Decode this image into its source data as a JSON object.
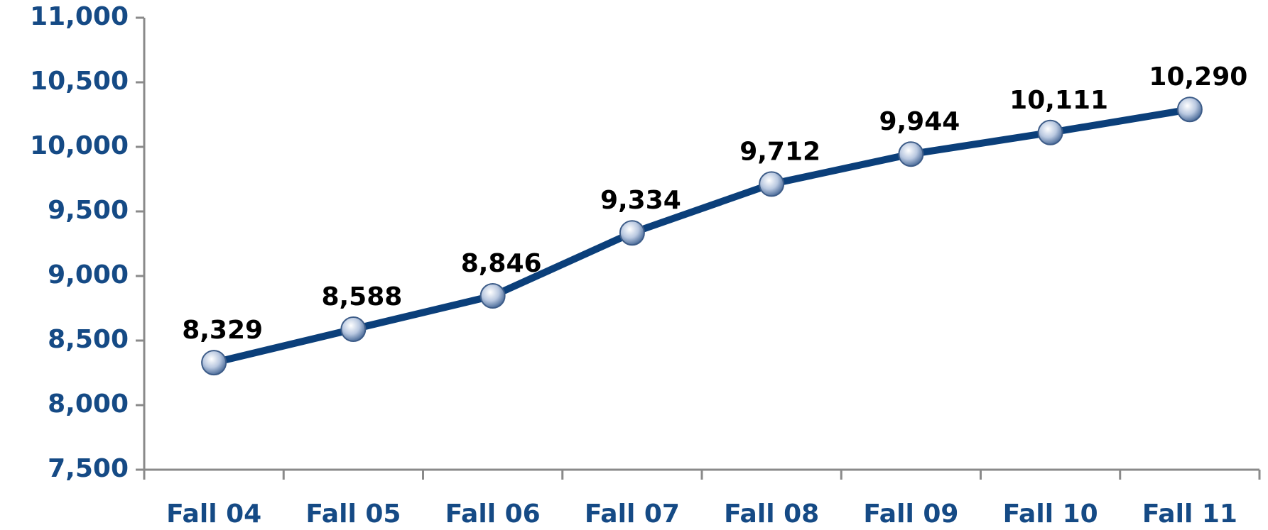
{
  "chart_data": {
    "type": "line",
    "categories": [
      "Fall 04",
      "Fall 05",
      "Fall 06",
      "Fall 07",
      "Fall 08",
      "Fall 09",
      "Fall 10",
      "Fall 11"
    ],
    "series": [
      {
        "color": "#0b3f7a",
        "values": [
          8329,
          8588,
          8846,
          9334,
          9712,
          9944,
          10111,
          10290
        ],
        "value_labels": [
          "8,329",
          "8,588",
          "8,846",
          "9,334",
          "9,712",
          "9,944",
          "10,111",
          "10,290"
        ]
      }
    ],
    "ylim": [
      7500,
      11000
    ],
    "yticks": [
      {
        "value": 7500,
        "label": "7,500"
      },
      {
        "value": 8000,
        "label": "8,000"
      },
      {
        "value": 8500,
        "label": "8,500"
      },
      {
        "value": 9000,
        "label": "9,000"
      },
      {
        "value": 9500,
        "label": "9,500"
      },
      {
        "value": 10000,
        "label": "10,000"
      },
      {
        "value": 10500,
        "label": "10,500"
      },
      {
        "value": 11000,
        "label": "11,000"
      }
    ]
  }
}
